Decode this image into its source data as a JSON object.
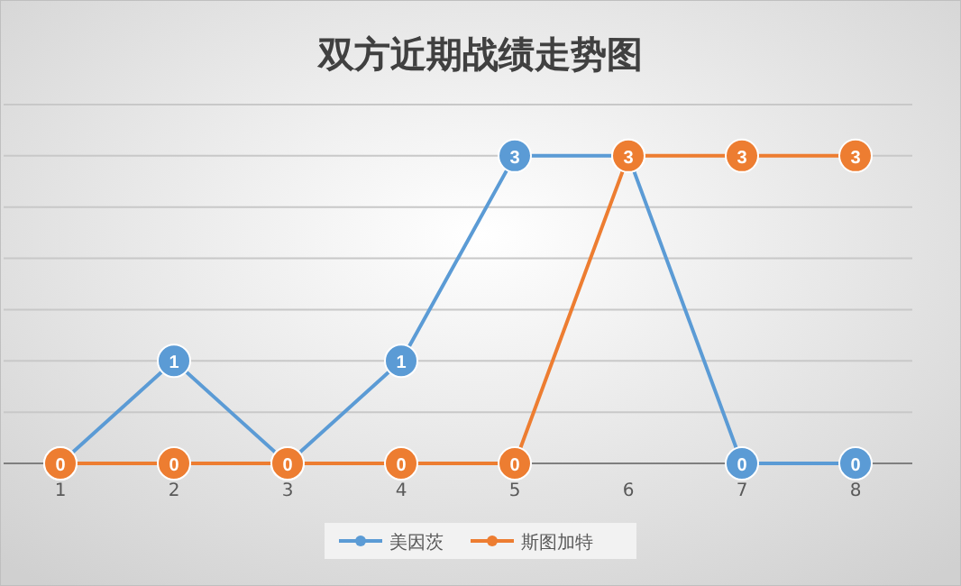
{
  "chart_data": {
    "type": "line",
    "title": "双方近期战绩走势图",
    "categories": [
      "1",
      "2",
      "3",
      "4",
      "5",
      "6",
      "7",
      "8"
    ],
    "series": [
      {
        "name": "美因茨",
        "color": "#5b9bd5",
        "values": [
          0,
          1,
          0,
          1,
          3,
          3,
          0,
          0
        ],
        "value_labels": [
          null,
          "1",
          null,
          "1",
          "3",
          null,
          "0",
          "0"
        ]
      },
      {
        "name": "斯图加特",
        "color": "#ed7d31",
        "values": [
          0,
          0,
          0,
          0,
          0,
          3,
          3,
          3
        ],
        "value_labels": [
          "0",
          "0",
          "0",
          "0",
          "0",
          "3",
          "3",
          "3"
        ]
      }
    ],
    "ylim": [
      0,
      3.5
    ],
    "yticks": [
      {
        "value": 0,
        "label": null
      },
      {
        "value": 0.5,
        "label": null
      },
      {
        "value": 1,
        "label": null
      },
      {
        "value": 1.5,
        "label": null
      },
      {
        "value": 2,
        "label": null
      },
      {
        "value": 2.5,
        "label": null
      },
      {
        "value": 3,
        "label": null
      },
      {
        "value": 3.5,
        "label": null
      }
    ],
    "tick_labels": "x",
    "grid": "y",
    "legend": "bottom",
    "marker": "circle",
    "line_style": "solid"
  }
}
